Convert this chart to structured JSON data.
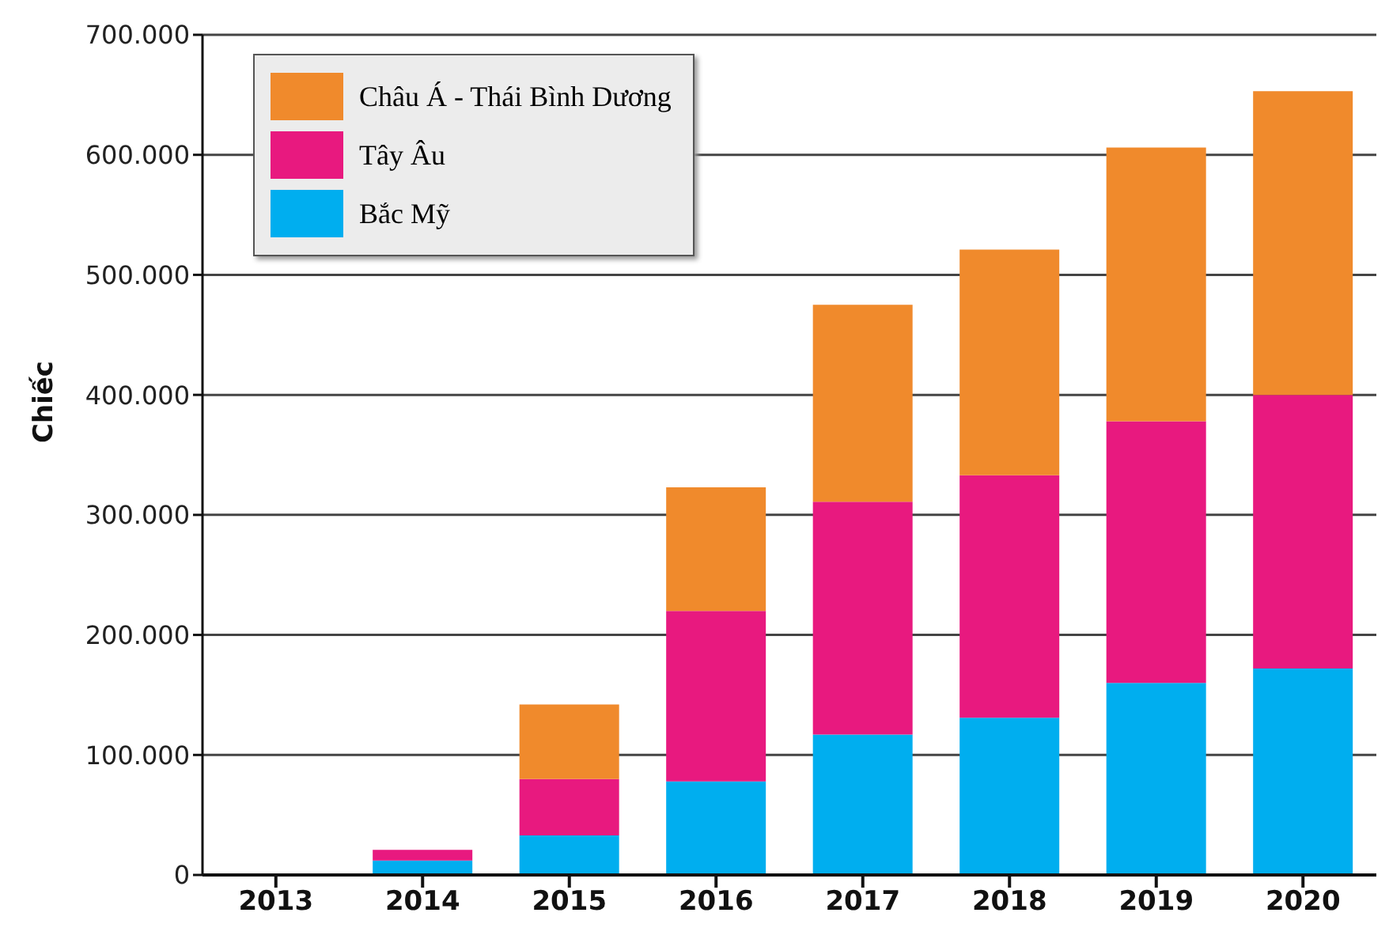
{
  "chart_data": {
    "type": "bar",
    "stacked": true,
    "ylabel": "Chiếc",
    "categories": [
      "2013",
      "2014",
      "2015",
      "2016",
      "2017",
      "2018",
      "2019",
      "2020"
    ],
    "series": [
      {
        "name": "Bắc Mỹ",
        "color": "#00aeef",
        "values": [
          0,
          12000,
          33000,
          78000,
          117000,
          131000,
          160000,
          172000
        ]
      },
      {
        "name": "Tây Âu",
        "color": "#e8197f",
        "values": [
          0,
          9000,
          47000,
          142000,
          194000,
          202000,
          218000,
          228000
        ]
      },
      {
        "name": "Châu Á - Thái Bình Dương",
        "color": "#f08a2c",
        "values": [
          0,
          0,
          62000,
          103000,
          164000,
          188000,
          228000,
          253000
        ]
      }
    ],
    "ylim": [
      0,
      700000
    ],
    "yticks": [
      0,
      {
        "value": 100000,
        "label": "100.000"
      },
      {
        "value": 200000,
        "label": "200.000"
      },
      {
        "value": 300000,
        "label": "300.000"
      },
      {
        "value": 400000,
        "label": "400.000"
      },
      {
        "value": 500000,
        "label": "500.000"
      },
      {
        "value": 600000,
        "label": "600.000"
      },
      {
        "value": 700000,
        "label": "700.000"
      }
    ],
    "grid": "y",
    "legend": "top left"
  }
}
